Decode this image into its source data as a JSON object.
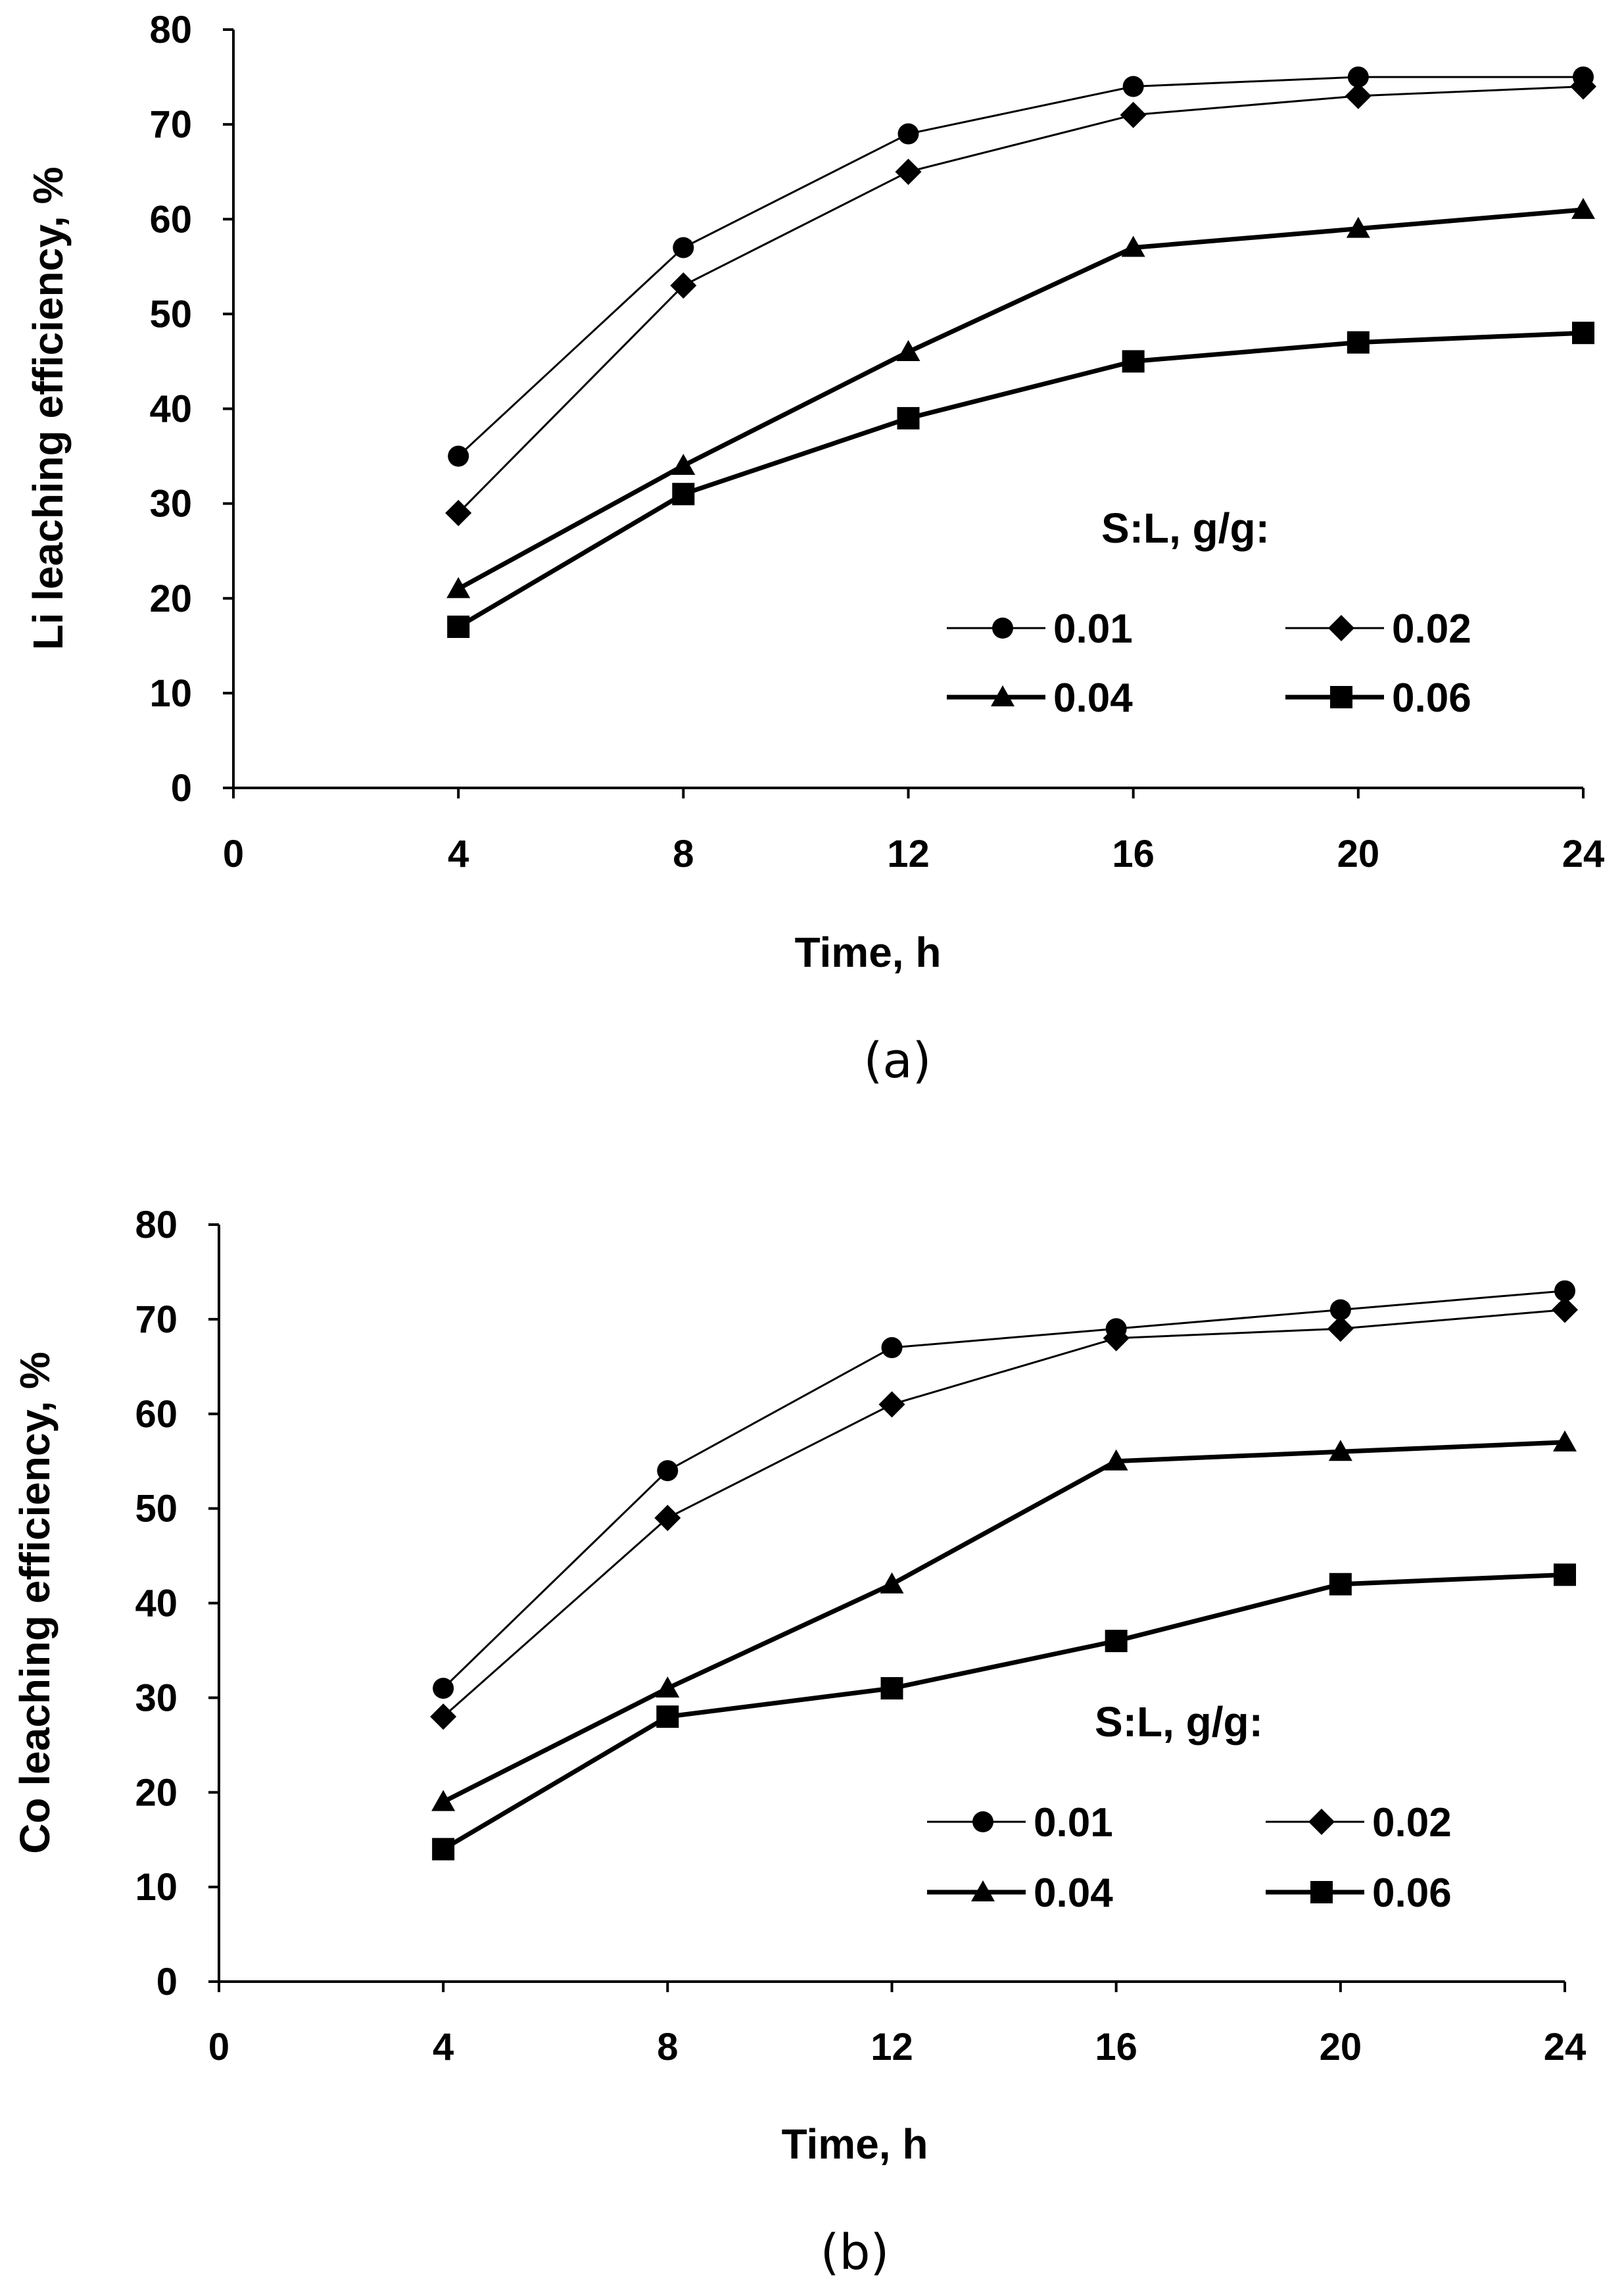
{
  "chart_data": [
    {
      "type": "line",
      "panel_label": "(a)",
      "xlabel": "Time, h",
      "ylabel": "Li leaching efficiency, %",
      "xlim": [
        0,
        24
      ],
      "ylim": [
        0,
        80
      ],
      "xticks": [
        "0",
        "4",
        "8",
        "12",
        "16",
        "20",
        "24"
      ],
      "yticks": [
        "0",
        "10",
        "20",
        "30",
        "40",
        "50",
        "60",
        "70",
        "80"
      ],
      "legend_title": "S:L, g/g:",
      "legend_position": "lower-right",
      "grid": false,
      "x": [
        4,
        8,
        12,
        16,
        20,
        24
      ],
      "series": [
        {
          "name": "0.01",
          "marker": "circle",
          "weight": "thin",
          "values": [
            35,
            57,
            69,
            74,
            75,
            75
          ]
        },
        {
          "name": "0.02",
          "marker": "diamond",
          "weight": "thin",
          "values": [
            29,
            53,
            65,
            71,
            73,
            74
          ]
        },
        {
          "name": "0.04",
          "marker": "triangle",
          "weight": "thick",
          "values": [
            21,
            34,
            46,
            57,
            59,
            61
          ]
        },
        {
          "name": "0.06",
          "marker": "square",
          "weight": "thick",
          "values": [
            17,
            31,
            39,
            45,
            47,
            48
          ]
        }
      ]
    },
    {
      "type": "line",
      "panel_label": "(b)",
      "xlabel": "Time, h",
      "ylabel": "Co leaching efficiency, %",
      "xlim": [
        0,
        24
      ],
      "ylim": [
        0,
        80
      ],
      "xticks": [
        "0",
        "4",
        "8",
        "12",
        "16",
        "20",
        "24"
      ],
      "yticks": [
        "0",
        "10",
        "20",
        "30",
        "40",
        "50",
        "60",
        "70",
        "80"
      ],
      "legend_title": "S:L, g/g:",
      "legend_position": "lower-right",
      "grid": false,
      "x": [
        4,
        8,
        12,
        16,
        20,
        24
      ],
      "series": [
        {
          "name": "0.01",
          "marker": "circle",
          "weight": "thin",
          "values": [
            31,
            54,
            67,
            69,
            71,
            73
          ]
        },
        {
          "name": "0.02",
          "marker": "diamond",
          "weight": "thin",
          "values": [
            28,
            49,
            61,
            68,
            69,
            71
          ]
        },
        {
          "name": "0.04",
          "marker": "triangle",
          "weight": "thick",
          "values": [
            19,
            31,
            42,
            55,
            56,
            57
          ]
        },
        {
          "name": "0.06",
          "marker": "square",
          "weight": "thick",
          "values": [
            14,
            28,
            31,
            36,
            42,
            43
          ]
        }
      ]
    }
  ]
}
